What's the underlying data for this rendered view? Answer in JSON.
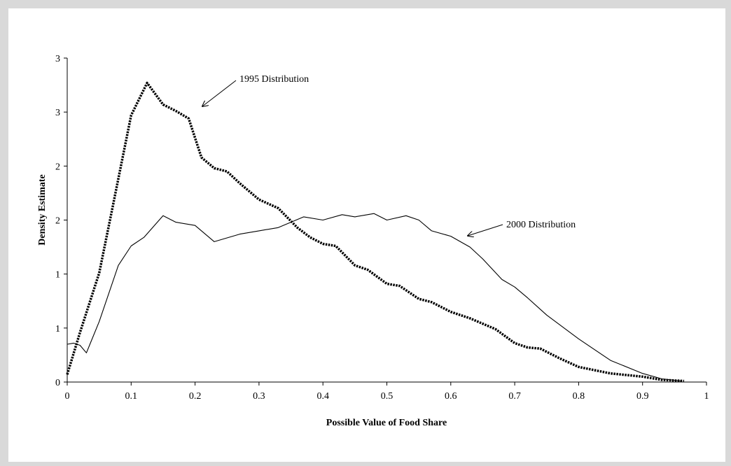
{
  "chart_data": {
    "type": "line",
    "x_label": "Possible Value of Food Share",
    "y_label": "Density Estimate",
    "xlim": [
      0,
      1
    ],
    "ylim": [
      0,
      3
    ],
    "xticks": [
      0,
      0.1,
      0.2,
      0.3,
      0.4,
      0.5,
      0.6,
      0.7,
      0.8,
      0.9,
      1
    ],
    "yticks": [
      0,
      {
        "value": 0.5,
        "label": "1"
      },
      {
        "value": 1,
        "label": "1"
      },
      {
        "value": 1.5,
        "label": "2"
      },
      {
        "value": 2,
        "label": "2"
      },
      {
        "value": 2.5,
        "label": "3"
      },
      {
        "value": 3,
        "label": "3"
      }
    ],
    "series": [
      {
        "name": "1995 Distribution",
        "color": "#000000",
        "style": "dotted",
        "x": [
          0,
          0.02,
          0.05,
          0.07,
          0.1,
          0.125,
          0.15,
          0.17,
          0.19,
          0.21,
          0.23,
          0.25,
          0.27,
          0.3,
          0.33,
          0.36,
          0.38,
          0.4,
          0.42,
          0.45,
          0.47,
          0.5,
          0.52,
          0.55,
          0.57,
          0.6,
          0.63,
          0.67,
          0.7,
          0.72,
          0.74,
          0.77,
          0.8,
          0.85,
          0.9,
          0.93,
          0.965
        ],
        "values": [
          0.07,
          0.46,
          1.01,
          1.59,
          2.47,
          2.77,
          2.57,
          2.51,
          2.44,
          2.08,
          1.98,
          1.95,
          1.84,
          1.69,
          1.61,
          1.43,
          1.34,
          1.28,
          1.26,
          1.08,
          1.04,
          0.91,
          0.89,
          0.77,
          0.74,
          0.65,
          0.59,
          0.49,
          0.36,
          0.32,
          0.31,
          0.22,
          0.14,
          0.08,
          0.05,
          0.02,
          0.01
        ]
      },
      {
        "name": "2000 Distribution",
        "color": "#000000",
        "style": "solid",
        "x": [
          0,
          0.01,
          0.02,
          0.03,
          0.05,
          0.08,
          0.1,
          0.12,
          0.15,
          0.17,
          0.2,
          0.23,
          0.27,
          0.3,
          0.33,
          0.37,
          0.4,
          0.43,
          0.45,
          0.48,
          0.5,
          0.53,
          0.55,
          0.57,
          0.6,
          0.63,
          0.65,
          0.68,
          0.7,
          0.72,
          0.75,
          0.8,
          0.85,
          0.9,
          0.93,
          0.96
        ],
        "values": [
          0.35,
          0.36,
          0.34,
          0.27,
          0.56,
          1.08,
          1.26,
          1.34,
          1.54,
          1.48,
          1.45,
          1.3,
          1.37,
          1.4,
          1.43,
          1.53,
          1.5,
          1.55,
          1.53,
          1.56,
          1.5,
          1.54,
          1.5,
          1.4,
          1.35,
          1.25,
          1.14,
          0.95,
          0.88,
          0.78,
          0.62,
          0.4,
          0.2,
          0.08,
          0.03,
          0.01
        ]
      }
    ]
  }
}
